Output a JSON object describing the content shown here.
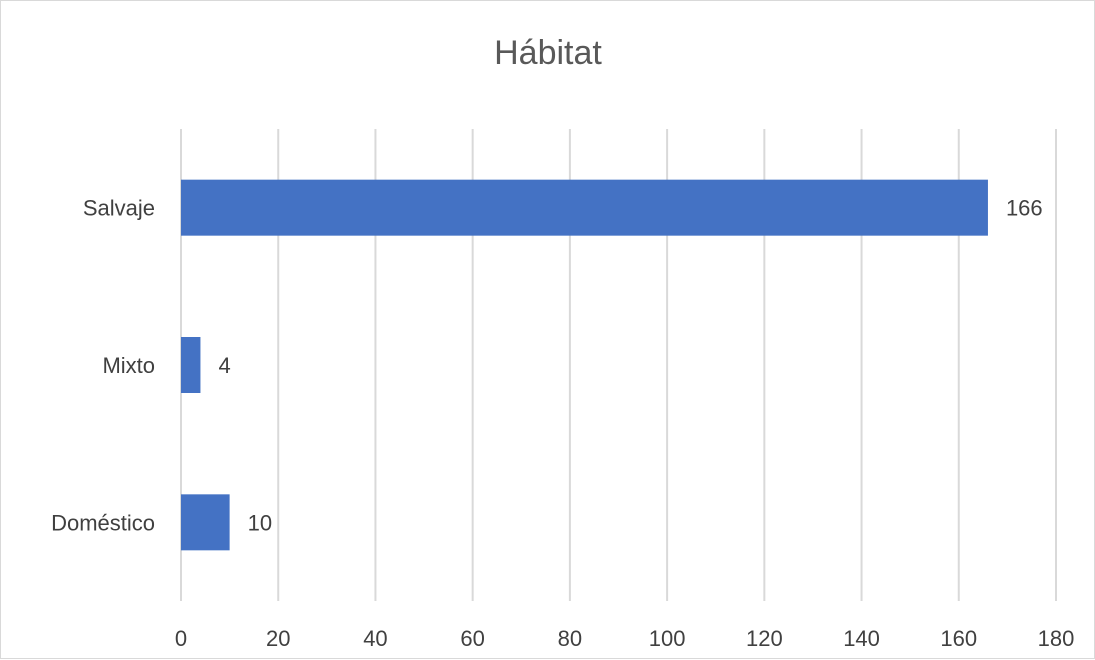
{
  "chart_data": {
    "type": "bar",
    "orientation": "horizontal",
    "title": "Hábitat",
    "xlabel": "",
    "ylabel": "",
    "categories": [
      "Salvaje",
      "Mixto",
      "Doméstico"
    ],
    "values": [
      166,
      4,
      10
    ],
    "xlim": [
      0,
      180
    ],
    "xticks": [
      0,
      20,
      40,
      60,
      80,
      100,
      120,
      140,
      160,
      180
    ],
    "grid": true,
    "legend": "none",
    "data_labels": true,
    "bar_color": "#4472c4"
  }
}
